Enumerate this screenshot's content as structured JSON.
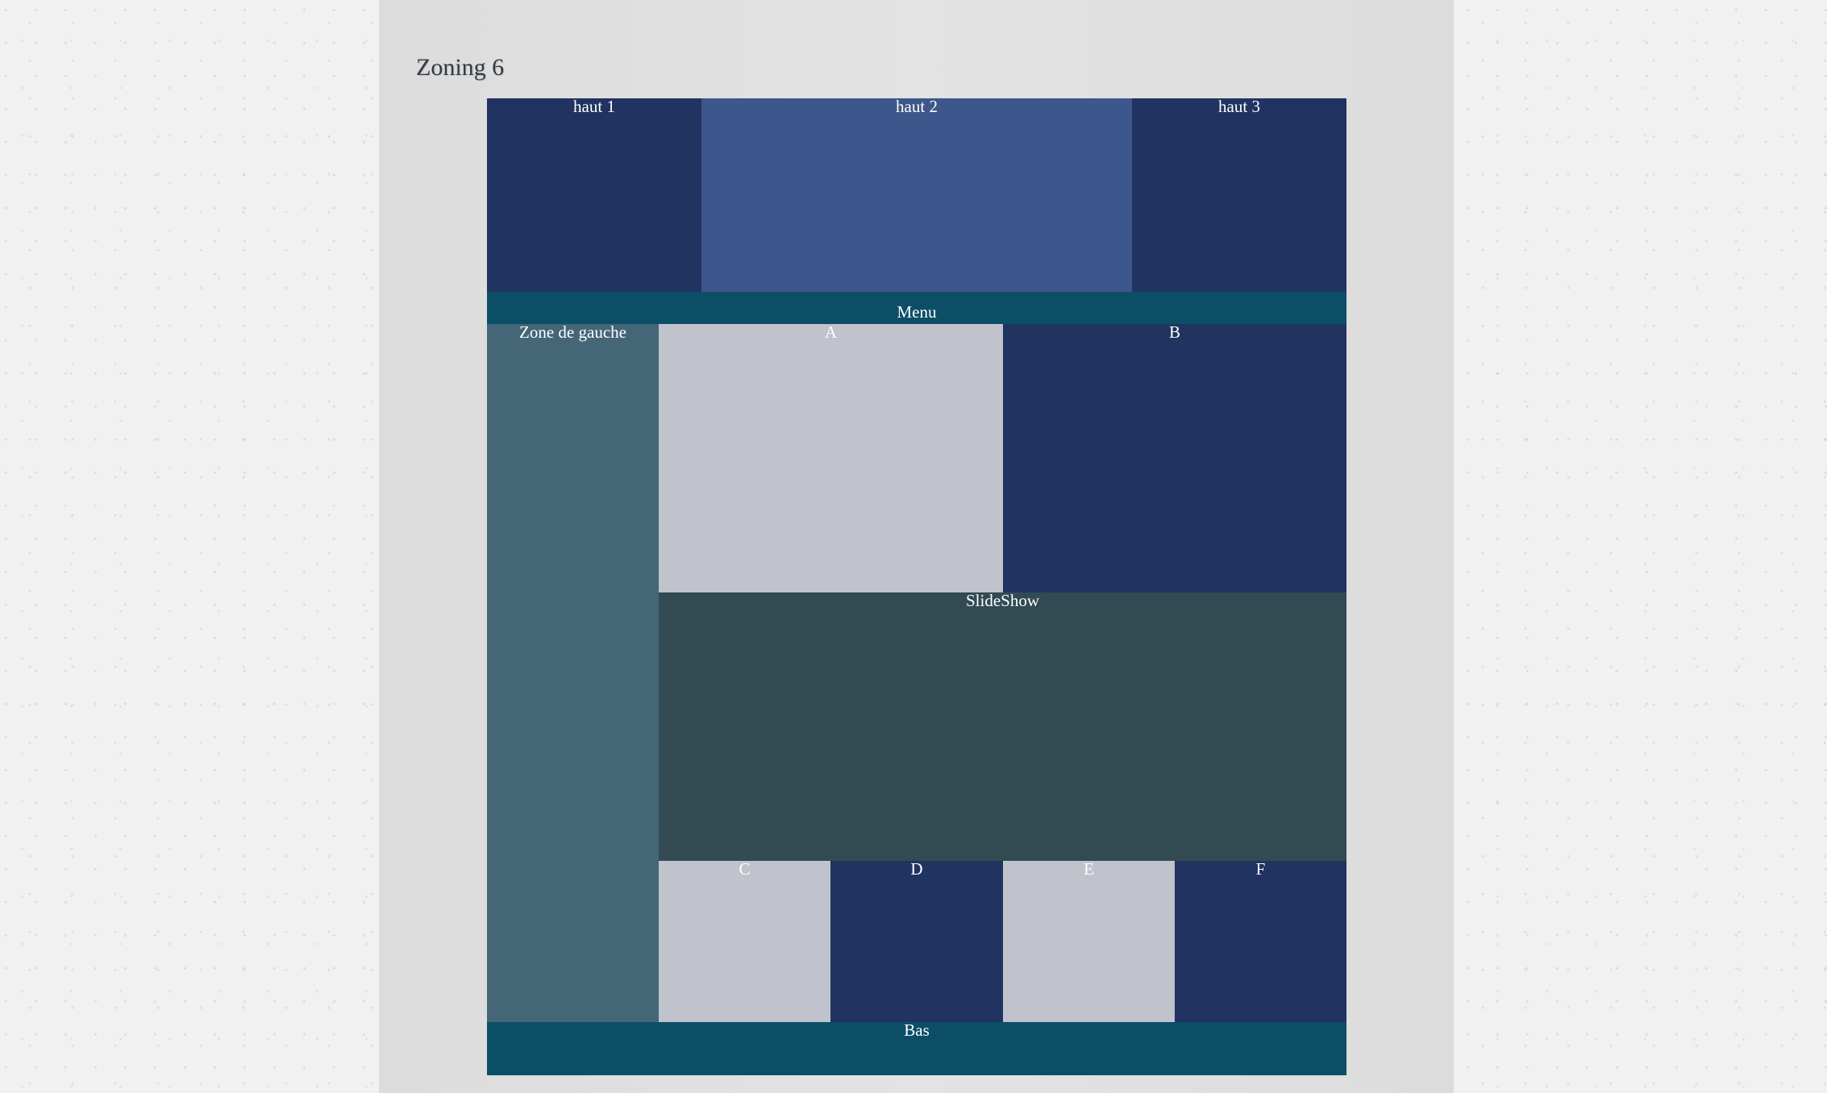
{
  "page": {
    "title": "Zoning 6"
  },
  "zones": {
    "haut1": "haut 1",
    "haut2": "haut 2",
    "haut3": "haut 3",
    "menu": "Menu",
    "gauche": "Zone de gauche",
    "a": "A",
    "b": "B",
    "slideshow": "SlideShow",
    "c": "C",
    "d": "D",
    "e": "E",
    "f": "F",
    "bas": "Bas"
  },
  "colors": {
    "dark_navy": "#213361",
    "medium_blue": "#3d578c",
    "teal": "#0d4e67",
    "slate": "#446677",
    "light_gray": "#c0c3cc",
    "dark_slate": "#324b53"
  }
}
